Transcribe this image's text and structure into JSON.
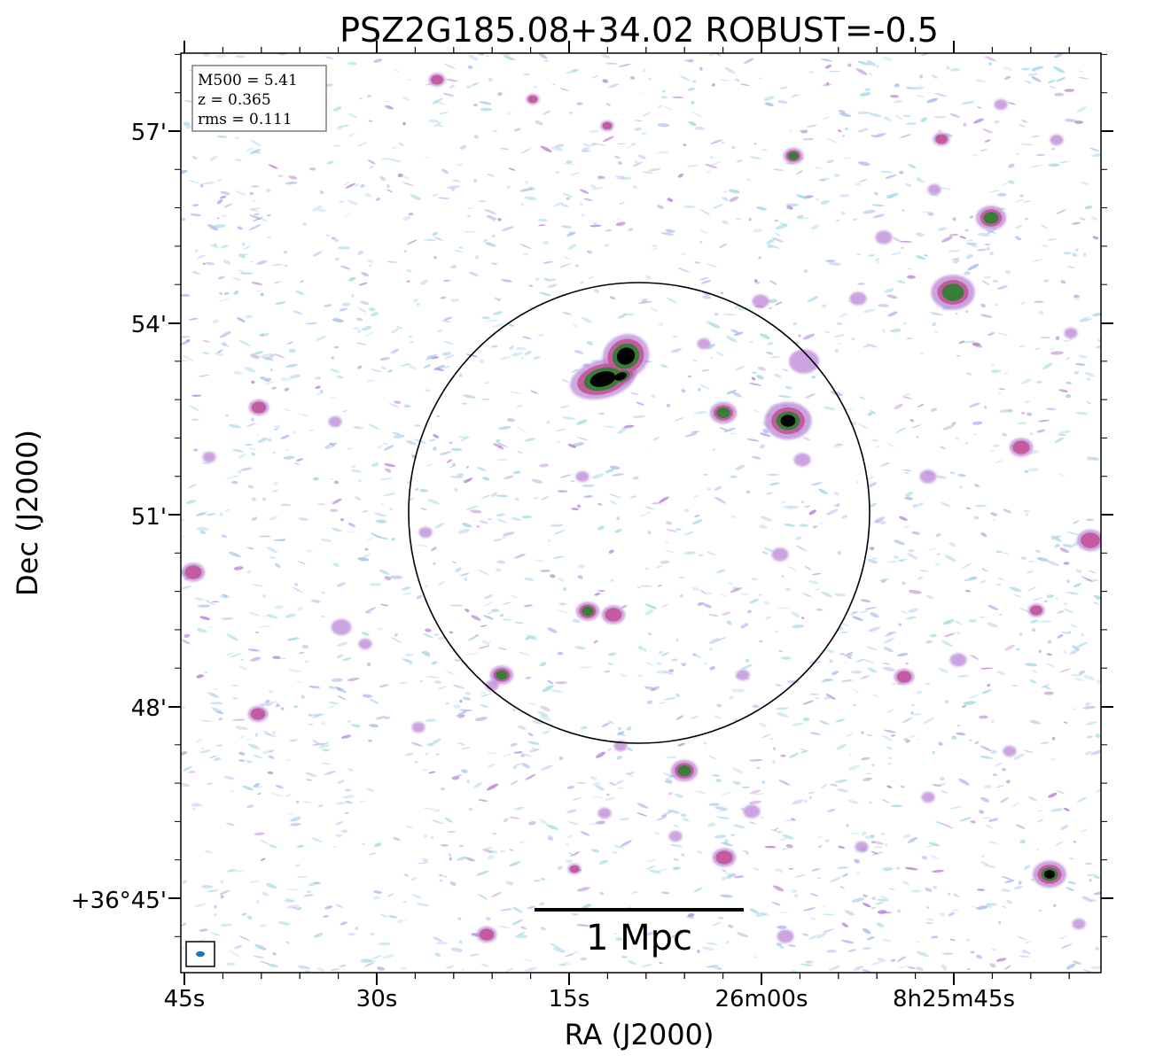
{
  "figure": {
    "title": "PSZ2G185.08+34.02 ROBUST=-0.5",
    "xlabel": "RA (J2000)",
    "ylabel": "Dec (J2000)",
    "x_ticks": [
      "45s",
      "30s",
      "15s",
      "26m00s",
      "8h25m45s"
    ],
    "y_ticks": [
      "57'",
      "54'",
      "51'",
      "48'",
      "+36°45'"
    ]
  },
  "info_box": {
    "m500": "M500 = 5.41",
    "z": "z = 0.365",
    "rms": "rms = 0.111"
  },
  "scale_bar": {
    "label": "1 Mpc"
  },
  "colors": {
    "faint_noise": "#a9d9e6",
    "blue_noise": "#aabbee",
    "violet": "#b884d6",
    "magenta": "#c3579a",
    "green": "#3a7d3a",
    "core": "#000000",
    "beam": "#1f77b4"
  }
}
